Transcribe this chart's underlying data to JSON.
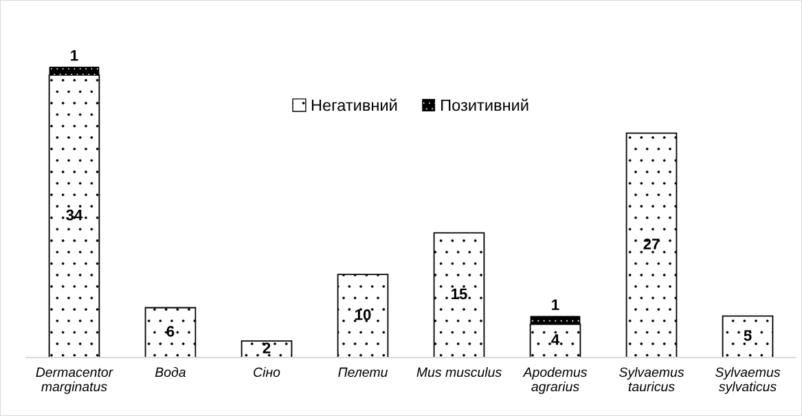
{
  "chart_data": {
    "type": "bar",
    "stacked": true,
    "data_labels": true,
    "legend": "top",
    "grid": false,
    "categories": [
      "Dermacentor\nmarginatus",
      "Вода",
      "Сіно",
      "Пелети",
      "Mus musculus",
      "Apodemus\nagrarius",
      "Sylvaemus\ntauricus",
      "Sylvaemus\nsylvaticus"
    ],
    "series": [
      {
        "name": "Негативний",
        "color": "#ffffff",
        "values": [
          34,
          6,
          2,
          10,
          15,
          4,
          27,
          5
        ]
      },
      {
        "name": "Позитивний",
        "color": "#000000",
        "values": [
          1,
          null,
          null,
          null,
          null,
          1,
          null,
          null
        ]
      }
    ]
  }
}
